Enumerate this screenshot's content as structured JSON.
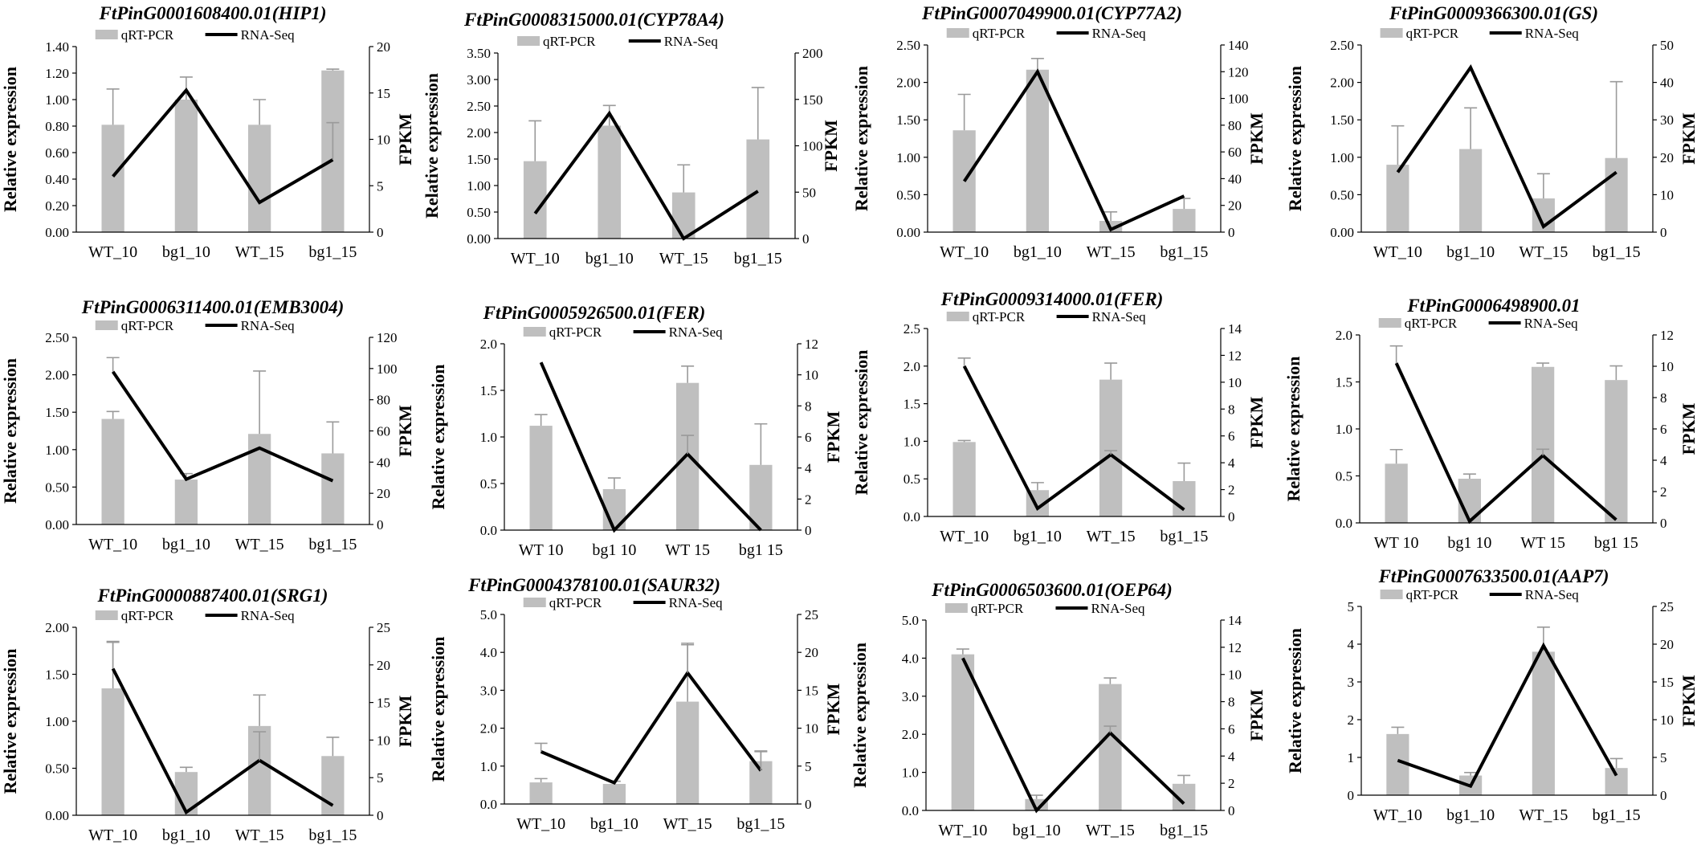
{
  "colors": {
    "bar": "#bfbfbf",
    "error_bar": "#9a9a9a",
    "line": "#000000",
    "axis": "#000000"
  },
  "legend": {
    "bar_label": "qRT-PCR",
    "line_label": "RNA-Seq"
  },
  "chart_data": [
    {
      "type": "bar+line",
      "title": "FtPinG0001608400.01(HIP1)",
      "ylabel": "Relative expression",
      "y2label": "FPKM",
      "categories": [
        "WT_10",
        "bg1_10",
        "WT_15",
        "bg1_15"
      ],
      "yticks": [
        "0.00",
        "0.20",
        "0.40",
        "0.60",
        "0.80",
        "1.00",
        "1.20",
        "1.40"
      ],
      "ylim": [
        0,
        1.4
      ],
      "y2ticks": [
        "0",
        "5",
        "10",
        "15",
        "20"
      ],
      "y2lim": [
        0,
        20
      ],
      "series": [
        {
          "name": "qRT-PCR",
          "type": "bar",
          "values": [
            0.81,
            1.0,
            0.81,
            1.22
          ],
          "errors": [
            0.27,
            0.17,
            0.19,
            0.01
          ]
        },
        {
          "name": "RNA-Seq",
          "type": "line",
          "axis": "y2",
          "values": [
            6.0,
            15.3,
            3.2,
            7.8
          ],
          "errors": [
            0,
            0,
            0,
            4.0
          ]
        }
      ]
    },
    {
      "type": "bar+line",
      "title": "FtPinG0008315000.01(CYP78A4)",
      "ylabel": "Relative expression",
      "y2label": "FPKM",
      "categories": [
        "WT_10",
        "bg1_10",
        "WT_15",
        "bg1_15"
      ],
      "yticks": [
        "0.00",
        "0.50",
        "1.00",
        "1.50",
        "2.00",
        "2.50",
        "3.00",
        "3.50"
      ],
      "ylim": [
        0,
        3.5
      ],
      "y2ticks": [
        "0",
        "50",
        "100",
        "150",
        "200"
      ],
      "y2lim": [
        0,
        200
      ],
      "series": [
        {
          "name": "qRT-PCR",
          "type": "bar",
          "values": [
            1.46,
            2.13,
            0.87,
            1.87
          ],
          "errors": [
            0.76,
            0.38,
            0.52,
            0.98
          ]
        },
        {
          "name": "RNA-Seq",
          "type": "line",
          "axis": "y2",
          "values": [
            27,
            135,
            0,
            51
          ],
          "errors": [
            0,
            0,
            0,
            0
          ]
        }
      ]
    },
    {
      "type": "bar+line",
      "title": "FtPinG0007049900.01(CYP77A2)",
      "ylabel": "Relative expression",
      "y2label": "FPKM",
      "categories": [
        "WT_10",
        "bg1_10",
        "WT_15",
        "bg1_15"
      ],
      "yticks": [
        "0.00",
        "0.50",
        "1.00",
        "1.50",
        "2.00",
        "2.50"
      ],
      "ylim": [
        0,
        2.5
      ],
      "y2ticks": [
        "0",
        "20",
        "40",
        "60",
        "80",
        "100",
        "120",
        "140"
      ],
      "y2lim": [
        0,
        140
      ],
      "series": [
        {
          "name": "qRT-PCR",
          "type": "bar",
          "values": [
            1.36,
            2.17,
            0.15,
            0.31
          ],
          "errors": [
            0.48,
            0.15,
            0.12,
            0.14
          ]
        },
        {
          "name": "RNA-Seq",
          "type": "line",
          "axis": "y2",
          "values": [
            38,
            120,
            2,
            27
          ],
          "errors": [
            0,
            0,
            0,
            0
          ]
        }
      ]
    },
    {
      "type": "bar+line",
      "title": "FtPinG0009366300.01(GS)",
      "ylabel": "Relative expression",
      "y2label": "FPKM",
      "categories": [
        "WT_10",
        "bg1_10",
        "WT_15",
        "bg1_15"
      ],
      "yticks": [
        "0.00",
        "0.50",
        "1.00",
        "1.50",
        "2.00",
        "2.50"
      ],
      "ylim": [
        0,
        2.5
      ],
      "y2ticks": [
        "0",
        "10",
        "20",
        "30",
        "40",
        "50"
      ],
      "y2lim": [
        0,
        50
      ],
      "series": [
        {
          "name": "qRT-PCR",
          "type": "bar",
          "values": [
            0.9,
            1.11,
            0.45,
            0.99
          ],
          "errors": [
            0.52,
            0.55,
            0.33,
            1.02
          ]
        },
        {
          "name": "RNA-Seq",
          "type": "line",
          "axis": "y2",
          "values": [
            16,
            44,
            1.5,
            16
          ],
          "errors": [
            0,
            0,
            0,
            0
          ]
        }
      ]
    },
    {
      "type": "bar+line",
      "title": "FtPinG0006311400.01(EMB3004)",
      "ylabel": "Relative expression",
      "y2label": "FPKM",
      "categories": [
        "WT_10",
        "bg1_10",
        "WT_15",
        "bg1_15"
      ],
      "yticks": [
        "0.00",
        "0.50",
        "1.00",
        "1.50",
        "2.00",
        "2.50"
      ],
      "ylim": [
        0,
        2.5
      ],
      "y2ticks": [
        "0",
        "20",
        "40",
        "60",
        "80",
        "100",
        "120"
      ],
      "y2lim": [
        0,
        120
      ],
      "series": [
        {
          "name": "qRT-PCR",
          "type": "bar",
          "values": [
            1.41,
            0.6,
            1.21,
            0.95
          ],
          "errors": [
            0.1,
            0.08,
            0.84,
            0.42
          ]
        },
        {
          "name": "RNA-Seq",
          "type": "line",
          "axis": "y2",
          "values": [
            98,
            29,
            49,
            28
          ],
          "errors": [
            9,
            0,
            0,
            0
          ]
        }
      ]
    },
    {
      "type": "bar+line",
      "title": "FtPinG0005926500.01(FER)",
      "ylabel": "Relative expression",
      "y2label": "FPKM",
      "categories": [
        "WT 10",
        "bg1 10",
        "WT 15",
        "bg1 15"
      ],
      "yticks": [
        "0.0",
        "0.5",
        "1.0",
        "1.5",
        "2.0"
      ],
      "ylim": [
        0,
        2.0
      ],
      "y2ticks": [
        "0",
        "2",
        "4",
        "6",
        "8",
        "10",
        "12"
      ],
      "y2lim": [
        0,
        12
      ],
      "series": [
        {
          "name": "qRT-PCR",
          "type": "bar",
          "values": [
            1.12,
            0.44,
            1.58,
            0.7
          ],
          "errors": [
            0.12,
            0.12,
            0.18,
            0.44
          ]
        },
        {
          "name": "RNA-Seq",
          "type": "line",
          "axis": "y2",
          "values": [
            10.8,
            0,
            4.9,
            0
          ],
          "errors": [
            0,
            0,
            1.2,
            0
          ]
        }
      ]
    },
    {
      "type": "bar+line",
      "title": "FtPinG0009314000.01(FER)",
      "ylabel": "Relative expression",
      "y2label": "FPKM",
      "categories": [
        "WT_10",
        "bg1_10",
        "WT_15",
        "bg1_15"
      ],
      "yticks": [
        "0.0",
        "0.5",
        "1.0",
        "1.5",
        "2.0",
        "2.5"
      ],
      "ylim": [
        0,
        2.5
      ],
      "y2ticks": [
        "0",
        "2",
        "4",
        "6",
        "8",
        "10",
        "12",
        "14"
      ],
      "y2lim": [
        0,
        14
      ],
      "series": [
        {
          "name": "qRT-PCR",
          "type": "bar",
          "values": [
            0.99,
            0.35,
            1.82,
            0.47
          ],
          "errors": [
            0.02,
            0.1,
            0.22,
            0.24
          ]
        },
        {
          "name": "RNA-Seq",
          "type": "line",
          "axis": "y2",
          "values": [
            11.2,
            0.6,
            4.6,
            0.5
          ],
          "errors": [
            0.6,
            0,
            0.3,
            0
          ]
        }
      ]
    },
    {
      "type": "bar+line",
      "title": "FtPinG0006498900.01",
      "ylabel": "Relative expression",
      "y2label": "FPKM",
      "categories": [
        "WT 10",
        "bg1 10",
        "WT 15",
        "bg1 15"
      ],
      "yticks": [
        "0.0",
        "0.5",
        "1.0",
        "1.5",
        "2.0"
      ],
      "ylim": [
        0,
        2.0
      ],
      "y2ticks": [
        "0",
        "2",
        "4",
        "6",
        "8",
        "10",
        "12"
      ],
      "y2lim": [
        0,
        12
      ],
      "series": [
        {
          "name": "qRT-PCR",
          "type": "bar",
          "values": [
            0.63,
            0.47,
            1.66,
            1.52
          ],
          "errors": [
            0.15,
            0.05,
            0.04,
            0.15
          ]
        },
        {
          "name": "RNA-Seq",
          "type": "line",
          "axis": "y2",
          "values": [
            10.2,
            0.1,
            4.3,
            0.2
          ],
          "errors": [
            1.1,
            0,
            0.4,
            0
          ]
        }
      ]
    },
    {
      "type": "bar+line",
      "title": "FtPinG0000887400.01(SRG1)",
      "ylabel": "Relative expression",
      "y2label": "FPKM",
      "categories": [
        "WT_10",
        "bg1_10",
        "WT_15",
        "bg1_15"
      ],
      "yticks": [
        "0.00",
        "0.50",
        "1.00",
        "1.50",
        "2.00"
      ],
      "ylim": [
        0,
        2.0
      ],
      "y2ticks": [
        "0",
        "5",
        "10",
        "15",
        "20",
        "25"
      ],
      "y2lim": [
        0,
        25
      ],
      "series": [
        {
          "name": "qRT-PCR",
          "type": "bar",
          "values": [
            1.35,
            0.46,
            0.95,
            0.63
          ],
          "errors": [
            0.5,
            0.05,
            0.33,
            0.2
          ]
        },
        {
          "name": "RNA-Seq",
          "type": "line",
          "axis": "y2",
          "values": [
            19.5,
            0.4,
            7.3,
            1.3
          ],
          "errors": [
            3.5,
            0,
            3.8,
            0
          ]
        }
      ]
    },
    {
      "type": "bar+line",
      "title": "FtPinG0004378100.01(SAUR32)",
      "ylabel": "Relative expression",
      "y2label": "FPKM",
      "categories": [
        "WT_10",
        "bg1_10",
        "WT_15",
        "bg1_15"
      ],
      "yticks": [
        "0.0",
        "1.0",
        "2.0",
        "3.0",
        "4.0",
        "5.0"
      ],
      "ylim": [
        0,
        5.0
      ],
      "y2ticks": [
        "0",
        "5",
        "10",
        "15",
        "20",
        "25"
      ],
      "y2lim": [
        0,
        25
      ],
      "series": [
        {
          "name": "qRT-PCR",
          "type": "bar",
          "values": [
            0.57,
            0.53,
            2.7,
            1.13
          ],
          "errors": [
            0.1,
            0.07,
            1.5,
            0.25
          ]
        },
        {
          "name": "RNA-Seq",
          "type": "line",
          "axis": "y2",
          "values": [
            6.9,
            2.8,
            17.3,
            4.4
          ],
          "errors": [
            1.1,
            0,
            3.9,
            2.6
          ]
        }
      ]
    },
    {
      "type": "bar+line",
      "title": "FtPinG0006503600.01(OEP64)",
      "ylabel": "Relative expression",
      "y2label": "FPKM",
      "categories": [
        "WT_10",
        "bg1_10",
        "WT_15",
        "bg1_15"
      ],
      "yticks": [
        "0.0",
        "1.0",
        "2.0",
        "3.0",
        "4.0",
        "5.0"
      ],
      "ylim": [
        0,
        5.0
      ],
      "y2ticks": [
        "0",
        "2",
        "4",
        "6",
        "8",
        "10",
        "12",
        "14"
      ],
      "y2lim": [
        0,
        14
      ],
      "series": [
        {
          "name": "qRT-PCR",
          "type": "bar",
          "values": [
            4.1,
            0.3,
            3.32,
            0.7
          ],
          "errors": [
            0.14,
            0.1,
            0.16,
            0.22
          ]
        },
        {
          "name": "RNA-Seq",
          "type": "line",
          "axis": "y2",
          "values": [
            11.2,
            0,
            5.7,
            0.5
          ],
          "errors": [
            0,
            0,
            0.5,
            0
          ]
        }
      ]
    },
    {
      "type": "bar+line",
      "title": "FtPinG0007633500.01(AAP7)",
      "ylabel": "Relative expression",
      "y2label": "FPKM",
      "categories": [
        "WT_10",
        "bg1_10",
        "WT_15",
        "bg1_15"
      ],
      "yticks": [
        "0",
        "1",
        "2",
        "3",
        "4",
        "5"
      ],
      "ylim": [
        0,
        5
      ],
      "y2ticks": [
        "0",
        "5",
        "10",
        "15",
        "20",
        "25"
      ],
      "y2lim": [
        0,
        25
      ],
      "series": [
        {
          "name": "qRT-PCR",
          "type": "bar",
          "values": [
            1.62,
            0.52,
            3.8,
            0.72
          ],
          "errors": [
            0.18,
            0.08,
            0.65,
            0.25
          ]
        },
        {
          "name": "RNA-Seq",
          "type": "line",
          "axis": "y2",
          "values": [
            4.6,
            1.2,
            19.8,
            2.6
          ],
          "errors": [
            0,
            0,
            0,
            0
          ]
        }
      ]
    }
  ]
}
